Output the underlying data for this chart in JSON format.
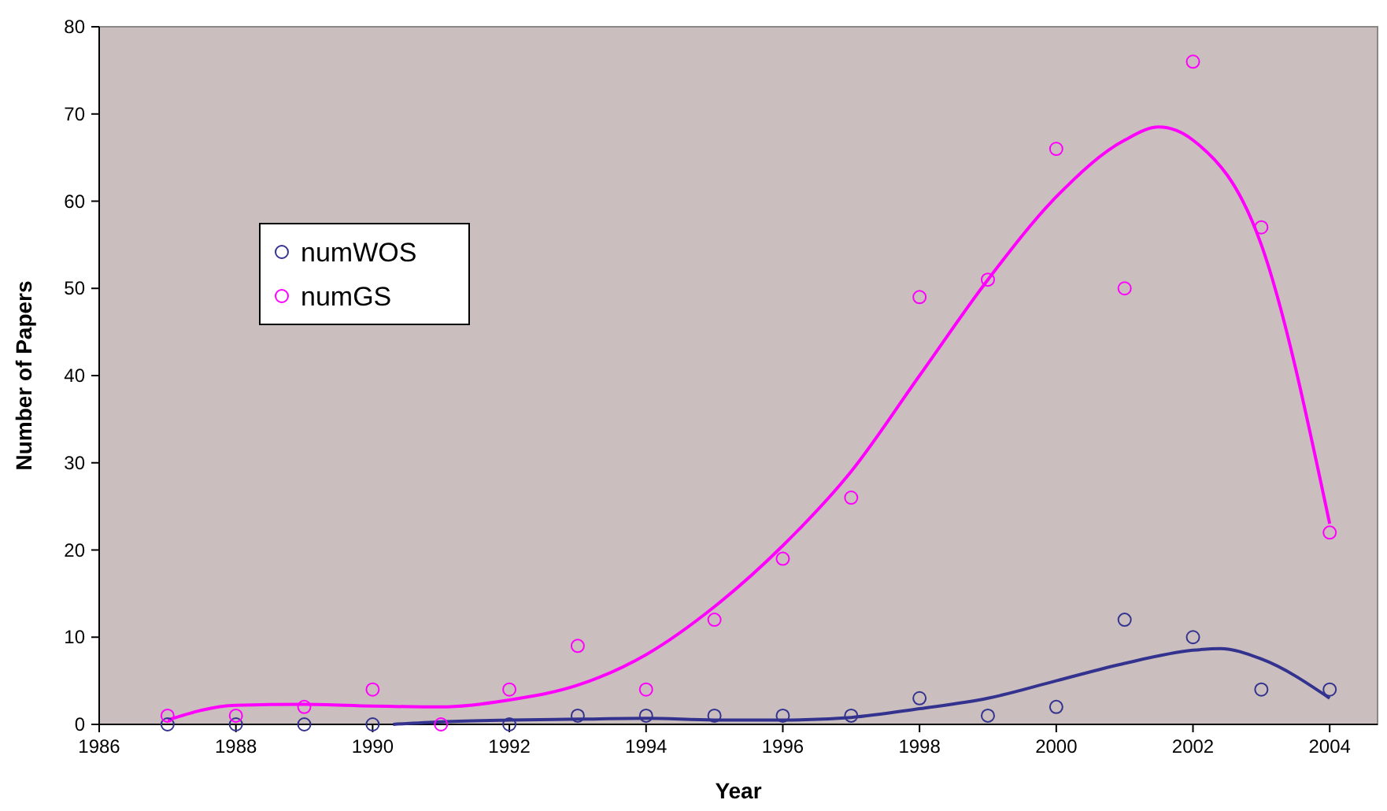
{
  "chart_data": {
    "type": "scatter",
    "xlabel": "Year",
    "ylabel": "Number of Papers",
    "xlim": [
      1986,
      2004.7
    ],
    "xticks": [
      1986,
      1988,
      1990,
      1992,
      1994,
      1996,
      1998,
      2000,
      2002,
      2004
    ],
    "ylim": [
      0,
      80
    ],
    "yticks": [
      0,
      10,
      20,
      30,
      40,
      50,
      60,
      70,
      80
    ],
    "grid": false,
    "legend": "top left",
    "marker": "circle",
    "series": [
      {
        "type": "line",
        "marker": "none",
        "color": "#33338f",
        "x": [
          1990.3,
          1991,
          1992,
          1993,
          1994,
          1995,
          1996,
          1997,
          1998,
          1999,
          2000,
          2001,
          2002,
          2002.4,
          2003,
          2004
        ],
        "values": [
          0,
          0.3,
          0.5,
          0.6,
          0.7,
          0.5,
          0.5,
          0.8,
          1.8,
          3,
          5,
          7,
          8.5,
          8.7,
          7.5,
          3
        ]
      },
      {
        "type": "line",
        "marker": "none",
        "color": "#ff00ff",
        "x": [
          1987,
          1988,
          1989,
          1990,
          1991,
          1992,
          1993,
          1994,
          1995,
          1996,
          1997,
          1998,
          1999,
          2000,
          2001,
          2001.5,
          2002,
          2003,
          2004
        ],
        "values": [
          0.5,
          2.2,
          2.3,
          2.1,
          2,
          2.8,
          4.5,
          8,
          13.5,
          20.5,
          29,
          40,
          51,
          60.5,
          67,
          68.5,
          67,
          55,
          23
        ]
      },
      {
        "name": "numWOS",
        "color": "#33338f",
        "x": [
          1987,
          1988,
          1989,
          1990,
          1991,
          1992,
          1993,
          1994,
          1995,
          1996,
          1997,
          1998,
          1999,
          2000,
          2001,
          2002,
          2003,
          2004
        ],
        "values": [
          0,
          0,
          0,
          0,
          null,
          0,
          1,
          1,
          1,
          1,
          1,
          3,
          1,
          2,
          12,
          10,
          4,
          4
        ]
      },
      {
        "name": "numGS",
        "color": "#ff00ff",
        "x": [
          1987,
          1988,
          1989,
          1990,
          1991,
          1992,
          1993,
          1994,
          1995,
          1996,
          1997,
          1998,
          1999,
          2000,
          2001,
          2002,
          2003,
          2004
        ],
        "values": [
          1,
          1,
          2,
          4,
          0,
          4,
          9,
          4,
          12,
          19,
          26,
          49,
          51,
          66,
          50,
          76,
          57,
          22
        ]
      }
    ]
  }
}
